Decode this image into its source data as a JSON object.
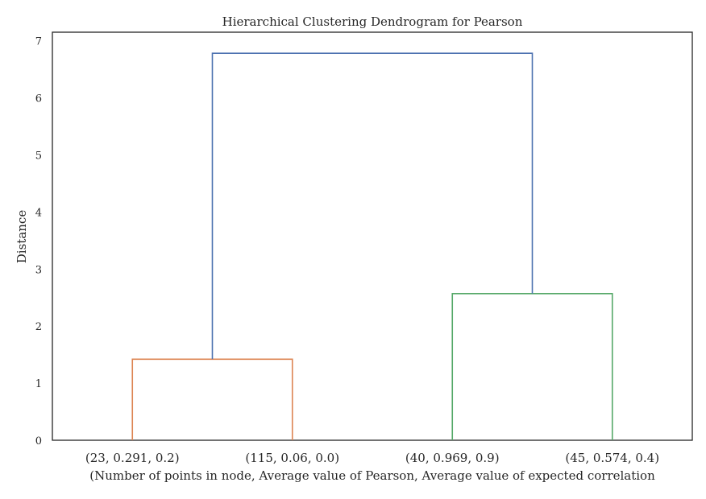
{
  "chart_data": {
    "type": "dendrogram",
    "title": "Hierarchical Clustering Dendrogram for Pearson",
    "xlabel": "(Number of points in node, Average value of Pearson, Average value of expected correlation",
    "ylabel": "Distance",
    "ylim": [
      0,
      7.15
    ],
    "yticks": [
      0,
      1,
      2,
      3,
      4,
      5,
      6,
      7
    ],
    "grid": false,
    "leaves": [
      "(23, 0.291, 0.2)",
      "(115, 0.06, 0.0)",
      "(40, 0.969, 0.9)",
      "(45, 0.574, 0.4)"
    ],
    "merges": [
      {
        "left": "leaf0",
        "right": "leaf1",
        "height": 1.42,
        "color": "#dd8452"
      },
      {
        "left": "leaf2",
        "right": "leaf3",
        "height": 2.57,
        "color": "#55a868"
      },
      {
        "left": "merge0",
        "right": "merge1",
        "height": 6.78,
        "color": "#4c72b0"
      }
    ]
  }
}
